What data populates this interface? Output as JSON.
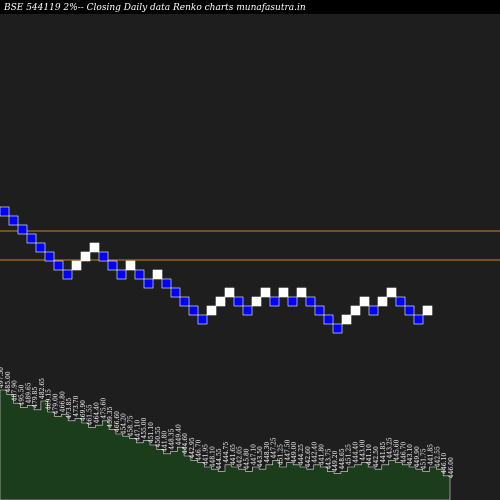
{
  "title": "BSE 544119 2%-- Closing Daily data  Renko  charts munafasutra.in",
  "colors": {
    "background": "#000000",
    "plot_background": "#1e1e1e",
    "up_brick": "#ffffff",
    "down_brick": "#0000ff",
    "brick_border": "#ffffff",
    "reference_line": "#c8821e",
    "volume_fill": "#1c3d1c",
    "volume_edge": "#e0e0e0"
  },
  "chart_data": {
    "type": "renko",
    "title": "BSE 544119 2%-- Closing Daily data  Renko  charts munafasutra.in",
    "box_size_label": "2%",
    "brick_directions": [
      "down",
      "down",
      "down",
      "down",
      "down",
      "down",
      "down",
      "down",
      "up",
      "up",
      "up",
      "down",
      "down",
      "down",
      "up",
      "down",
      "down",
      "up",
      "down",
      "down",
      "down",
      "down",
      "down",
      "up",
      "up",
      "up",
      "down",
      "down",
      "up",
      "up",
      "down",
      "up",
      "down",
      "up",
      "down",
      "down",
      "down",
      "down",
      "up",
      "up",
      "up",
      "down",
      "up",
      "up",
      "down",
      "down",
      "down",
      "up"
    ],
    "reference_lines": [
      502,
      484
    ],
    "volume_labels": [
      "497.50",
      "485.00",
      "487.90",
      "495.50",
      "489.65",
      "479.85",
      "482.65",
      "469.15",
      "479.00",
      "466.80",
      "473.85",
      "473.70",
      "469.90",
      "461.55",
      "464.40",
      "475.60",
      "459.35",
      "466.60",
      "454.20",
      "458.75",
      "447.10",
      "455.00",
      "451.10",
      "450.55",
      "441.80",
      "448.35",
      "449.40",
      "444.60",
      "442.95",
      "446.70",
      "441.95",
      "448.10",
      "444.55",
      "444.75",
      "441.65",
      "442.05",
      "445.80",
      "447.10",
      "443.50",
      "448.30",
      "447.25",
      "451.25",
      "447.50",
      "449.00",
      "444.25",
      "442.60",
      "442.40",
      "441.80",
      "443.75",
      "449.20",
      "448.65",
      "451.25",
      "444.40",
      "443.00",
      "441.10",
      "442.50",
      "441.85",
      "443.25",
      "445.60",
      "446.70",
      "443.10",
      "449.90",
      "451.75",
      "441.85",
      "442.55",
      "446.10",
      "446.00"
    ],
    "volume_values": [
      100,
      96,
      88,
      84,
      86,
      82,
      90,
      80,
      76,
      78,
      72,
      74,
      70,
      66,
      68,
      72,
      64,
      60,
      58,
      56,
      52,
      54,
      50,
      46,
      42,
      44,
      48,
      40,
      36,
      34,
      30,
      28,
      26,
      32,
      30,
      28,
      26,
      30,
      28,
      32,
      36,
      30,
      34,
      32,
      30,
      28,
      32,
      30,
      26,
      24,
      26,
      30,
      32,
      34,
      30,
      28,
      32,
      36,
      34,
      32,
      30,
      28,
      26,
      30,
      28,
      22,
      18
    ]
  }
}
